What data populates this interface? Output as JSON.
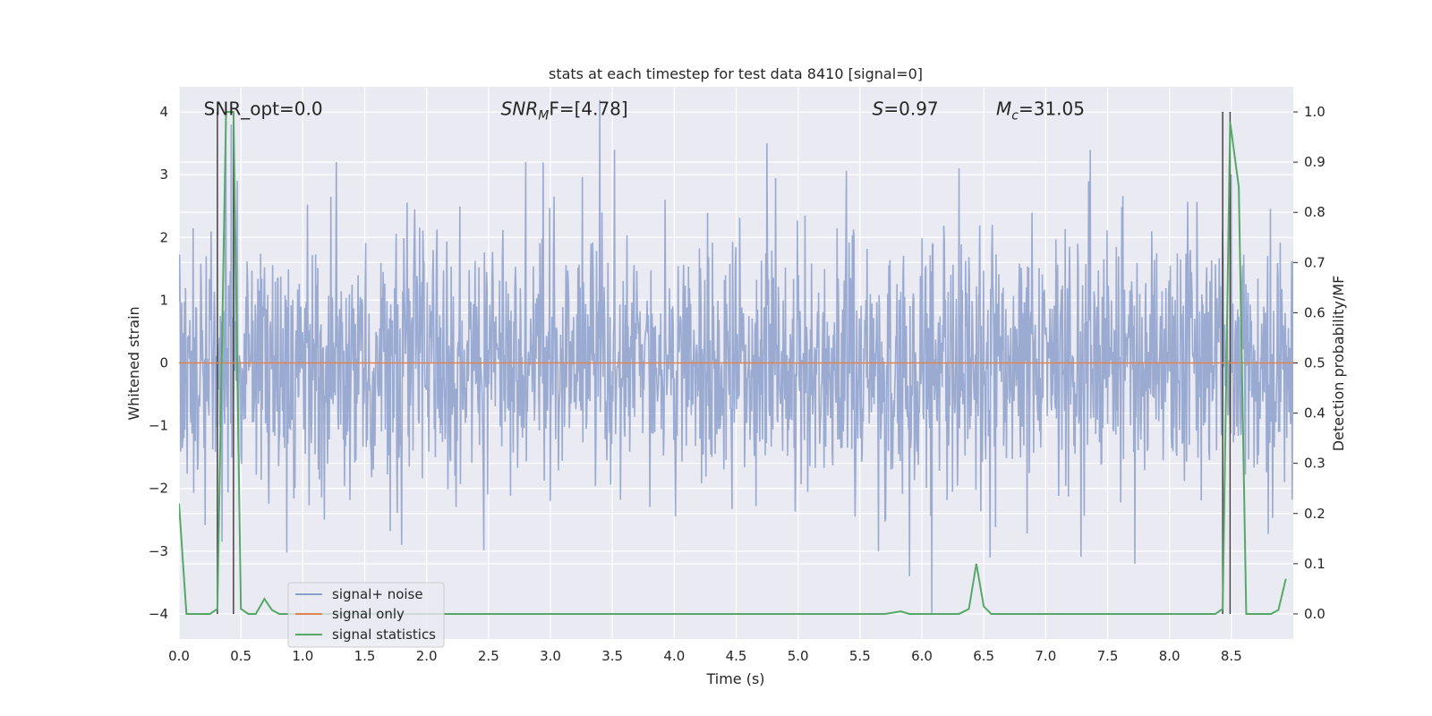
{
  "chart_data": {
    "type": "line",
    "title": "stats at each timestep for test data 8410 [signal=0]",
    "xlabel": "Time (s)",
    "ylabel_left": "Whitened strain",
    "ylabel_right": "Detection probability/MF",
    "xlim": [
      0.0,
      9.0
    ],
    "ylim_left": [
      -4.4,
      4.4
    ],
    "ylim_right": [
      -0.05,
      1.05
    ],
    "grid": true,
    "legend_position": "lower-left",
    "x_ticks": [
      "0.0",
      "0.5",
      "1.0",
      "1.5",
      "2.0",
      "2.5",
      "3.0",
      "3.5",
      "4.0",
      "4.5",
      "5.0",
      "5.5",
      "6.0",
      "6.5",
      "7.0",
      "7.5",
      "8.0",
      "8.5"
    ],
    "x_tick_values": [
      0.0,
      0.5,
      1.0,
      1.5,
      2.0,
      2.5,
      3.0,
      3.5,
      4.0,
      4.5,
      5.0,
      5.5,
      6.0,
      6.5,
      7.0,
      7.5,
      8.0,
      8.5
    ],
    "y_ticks_left": [
      "−4",
      "−3",
      "−2",
      "−1",
      "0",
      "1",
      "2",
      "3",
      "4"
    ],
    "y_tick_values_left": [
      -4,
      -3,
      -2,
      -1,
      0,
      1,
      2,
      3,
      4
    ],
    "y_ticks_right": [
      "0.0",
      "0.1",
      "0.2",
      "0.3",
      "0.4",
      "0.5",
      "0.6",
      "0.7",
      "0.8",
      "0.9",
      "1.0"
    ],
    "y_tick_values_right": [
      0.0,
      0.1,
      0.2,
      0.3,
      0.4,
      0.5,
      0.6,
      0.7,
      0.8,
      0.9,
      1.0
    ],
    "annotations": [
      {
        "text": "SNR_opt=0.0",
        "x": 0.2,
        "y": 4.05,
        "style": "normal"
      },
      {
        "main": "SNR",
        "sub": "M",
        "rest": "F=[4.78]",
        "x": 2.6,
        "y": 4.05,
        "style": "math"
      },
      {
        "main": "S",
        "sub": "",
        "rest": "=0.97",
        "x": 5.6,
        "y": 4.05,
        "style": "math"
      },
      {
        "main": "M",
        "sub": "c",
        "rest": "=31.05",
        "x": 6.6,
        "y": 4.05,
        "style": "math"
      }
    ],
    "vertical_markers": [
      0.31,
      0.44,
      8.43,
      8.49
    ],
    "series": [
      {
        "name": "signal+ noise",
        "color": "#8c9fcb",
        "kind": "noise",
        "x_range": [
          0.0,
          9.0
        ],
        "samples": 2048,
        "seed": 8410,
        "std": 1.0,
        "notable_peaks": [
          {
            "x": 0.38,
            "y": 4.0
          },
          {
            "x": 0.42,
            "y": 3.8
          },
          {
            "x": 0.47,
            "y": 2.9
          },
          {
            "x": 1.27,
            "y": 3.2
          },
          {
            "x": 2.8,
            "y": 3.2
          },
          {
            "x": 4.75,
            "y": 3.5
          },
          {
            "x": 6.3,
            "y": 3.1
          },
          {
            "x": 8.5,
            "y": 3.0
          },
          {
            "x": 1.8,
            "y": -2.9
          },
          {
            "x": 6.08,
            "y": -4.0
          },
          {
            "x": 5.9,
            "y": -3.4
          },
          {
            "x": 5.65,
            "y": -3.0
          },
          {
            "x": 7.72,
            "y": -3.2
          },
          {
            "x": 6.55,
            "y": -3.1
          }
        ]
      },
      {
        "name": "signal only",
        "color": "#dd8452",
        "kind": "line",
        "axis": "left",
        "points": [
          [
            0.0,
            0.0
          ],
          [
            9.0,
            0.0
          ]
        ]
      },
      {
        "name": "signal statistics",
        "color": "#55a868",
        "kind": "line",
        "axis": "right",
        "points": [
          [
            0.0,
            0.22
          ],
          [
            0.06,
            0.0
          ],
          [
            0.12,
            0.0
          ],
          [
            0.25,
            0.0
          ],
          [
            0.31,
            0.01
          ],
          [
            0.38,
            1.0
          ],
          [
            0.44,
            1.0
          ],
          [
            0.5,
            0.01
          ],
          [
            0.56,
            0.0
          ],
          [
            0.62,
            0.0
          ],
          [
            0.69,
            0.03
          ],
          [
            0.75,
            0.008
          ],
          [
            0.81,
            0.0
          ],
          [
            0.88,
            0.0
          ],
          [
            1.0,
            0.0
          ],
          [
            2.0,
            0.0
          ],
          [
            3.0,
            0.0
          ],
          [
            4.0,
            0.0
          ],
          [
            5.0,
            0.0
          ],
          [
            5.7,
            0.0
          ],
          [
            5.83,
            0.005
          ],
          [
            5.9,
            0.0
          ],
          [
            6.0,
            0.0
          ],
          [
            6.3,
            0.0
          ],
          [
            6.38,
            0.01
          ],
          [
            6.44,
            0.1
          ],
          [
            6.5,
            0.015
          ],
          [
            6.56,
            0.0
          ],
          [
            7.0,
            0.0
          ],
          [
            8.0,
            0.0
          ],
          [
            8.37,
            0.0
          ],
          [
            8.43,
            0.01
          ],
          [
            8.49,
            0.98
          ],
          [
            8.56,
            0.85
          ],
          [
            8.62,
            0.0
          ],
          [
            8.7,
            0.0
          ],
          [
            8.82,
            0.0
          ],
          [
            8.88,
            0.008
          ],
          [
            8.94,
            0.07
          ]
        ]
      }
    ]
  }
}
